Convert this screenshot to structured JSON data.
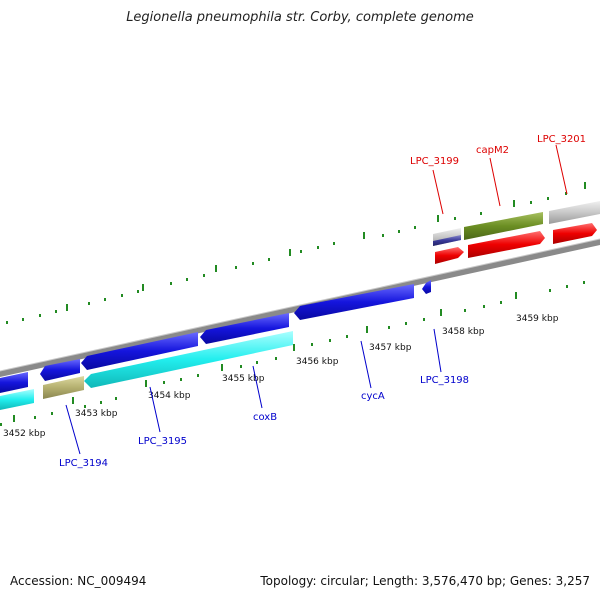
{
  "title": "Legionella pneumophila str. Corby, complete genome",
  "footer": {
    "accession": "Accession: NC_009494",
    "summary": "Topology: circular; Length: 3,576,470 bp; Genes: 3,257"
  },
  "ticks": [
    {
      "id": "t3452",
      "label": "3452 kbp"
    },
    {
      "id": "t3453",
      "label": "3453 kbp"
    },
    {
      "id": "t3454",
      "label": "3454 kbp"
    },
    {
      "id": "t3455",
      "label": "3455 kbp"
    },
    {
      "id": "t3456",
      "label": "3456 kbp"
    },
    {
      "id": "t3457",
      "label": "3457 kbp"
    },
    {
      "id": "t3458",
      "label": "3458 kbp"
    },
    {
      "id": "t3459",
      "label": "3459 kbp"
    }
  ],
  "gene_labels": {
    "lpc_3199": "LPC_3199",
    "capm2": "capM2",
    "lpc_3201": "LPC_3201",
    "lpc_3198": "LPC_3198",
    "cyca": "cycA",
    "coxb": "coxB",
    "lpc_3195": "LPC_3195",
    "lpc_3194": "LPC_3194"
  },
  "colors": {
    "forward_label": "#dd0000",
    "reverse_label": "#0000cc",
    "blue_gene": "#1515dd",
    "cyan_gene": "#22eeee",
    "red_gene": "#ee0000",
    "olive_gene": "#6b8e23",
    "khaki_gene": "#b5b070",
    "grey_gene": "#c8c8c8",
    "tick": "#228b22",
    "backbone": "#888888"
  }
}
